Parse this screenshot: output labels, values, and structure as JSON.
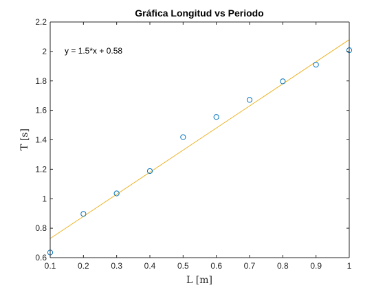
{
  "chart_data": {
    "type": "scatter",
    "title": "Gráfica Longitud vs Periodo",
    "xlabel": "L [m]",
    "ylabel": "T [s]",
    "xlim": [
      0.1,
      1.0
    ],
    "ylim": [
      0.6,
      2.2
    ],
    "xticks": [
      "0.1",
      "0.2",
      "0.3",
      "0.4",
      "0.5",
      "0.6",
      "0.7",
      "0.8",
      "0.9",
      "1"
    ],
    "yticks": [
      "0.6",
      "0.8",
      "1",
      "1.2",
      "1.4",
      "1.6",
      "1.8",
      "2",
      "2.2"
    ],
    "grid": false,
    "series": [
      {
        "marker": "circle",
        "color": "#0072BD",
        "x": [
          0.1,
          0.2,
          0.3,
          0.4,
          0.5,
          0.6,
          0.7,
          0.8,
          0.9,
          1.0
        ],
        "y": [
          0.635,
          0.897,
          1.036,
          1.188,
          1.418,
          1.555,
          1.671,
          1.797,
          1.91,
          2.008
        ]
      }
    ],
    "fit_line": {
      "color": "#EDB120",
      "slope": 1.5,
      "intercept": 0.58
    },
    "annotation": "y = 1.5*x + 0.58"
  }
}
